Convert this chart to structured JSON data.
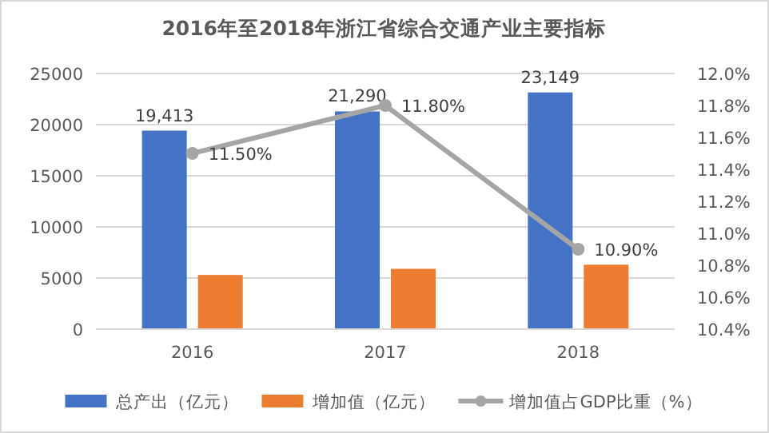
{
  "chart_data": {
    "type": "bar",
    "title": "2016年至2018年浙江省综合交通产业主要指标",
    "categories": [
      "2016",
      "2017",
      "2018"
    ],
    "series": [
      {
        "name": "总产出（亿元）",
        "color": "#4472c4",
        "values": [
          19413,
          21290,
          23149
        ],
        "value_labels": [
          "19,413",
          "21,290",
          "23,149"
        ]
      },
      {
        "name": "增加值（亿元）",
        "color": "#ed7d31",
        "values": [
          5300,
          5900,
          6300
        ]
      },
      {
        "name": "增加值占GDP比重（%）",
        "type": "line",
        "axis": "y2",
        "color": "#a5a5a5",
        "marker": "circle",
        "values": [
          11.5,
          11.8,
          10.9
        ],
        "value_labels": [
          "11.50%",
          "11.80%",
          "10.90%"
        ]
      }
    ],
    "ylim": [
      0,
      25000
    ],
    "yticks": [
      0,
      5000,
      10000,
      15000,
      20000,
      25000
    ],
    "y2lim": [
      10.4,
      12.0
    ],
    "y2ticks": [
      {
        "value": 10.4,
        "label": "10.4%"
      },
      {
        "value": 10.6,
        "label": "10.6%"
      },
      {
        "value": 10.8,
        "label": "10.8%"
      },
      {
        "value": 11.0,
        "label": "11.0%"
      },
      {
        "value": 11.2,
        "label": "11.2%"
      },
      {
        "value": 11.4,
        "label": "11.4%"
      },
      {
        "value": 11.6,
        "label": "11.6%"
      },
      {
        "value": 11.8,
        "label": "11.8%"
      },
      {
        "value": 12.0,
        "label": "12.0%"
      }
    ],
    "grid": "y",
    "legend": "bottom"
  }
}
